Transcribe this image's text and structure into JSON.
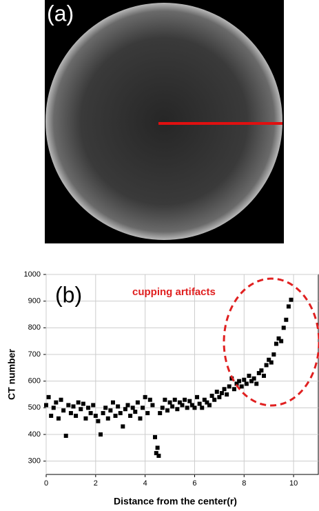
{
  "panel_a": {
    "label": "(a)"
  },
  "chart_data": {
    "type": "scatter",
    "panel_label": "(b)",
    "annotation": "cupping artifacts",
    "x_label": "Distance from the center(r)",
    "y_label": "CT number",
    "xlim": [
      0,
      11
    ],
    "xticks": [
      0,
      2,
      4,
      6,
      8,
      10
    ],
    "ylim": [
      250,
      1000
    ],
    "yticks": [
      300,
      400,
      500,
      600,
      700,
      800,
      900,
      1000
    ],
    "grid": true,
    "color": "#000000",
    "x": [
      0.0,
      0.1,
      0.2,
      0.3,
      0.4,
      0.5,
      0.6,
      0.7,
      0.8,
      0.9,
      1.0,
      1.1,
      1.2,
      1.3,
      1.4,
      1.5,
      1.6,
      1.7,
      1.8,
      1.9,
      2.0,
      2.1,
      2.2,
      2.3,
      2.4,
      2.5,
      2.6,
      2.7,
      2.8,
      2.9,
      3.0,
      3.1,
      3.2,
      3.3,
      3.4,
      3.5,
      3.6,
      3.7,
      3.8,
      3.9,
      4.0,
      4.1,
      4.2,
      4.3,
      4.4,
      4.45,
      4.5,
      4.55,
      4.6,
      4.7,
      4.8,
      4.9,
      5.0,
      5.1,
      5.2,
      5.3,
      5.4,
      5.5,
      5.6,
      5.7,
      5.8,
      5.9,
      6.0,
      6.1,
      6.2,
      6.3,
      6.4,
      6.5,
      6.6,
      6.7,
      6.8,
      6.9,
      7.0,
      7.1,
      7.2,
      7.3,
      7.4,
      7.5,
      7.6,
      7.7,
      7.8,
      7.9,
      8.0,
      8.1,
      8.2,
      8.3,
      8.4,
      8.5,
      8.6,
      8.7,
      8.8,
      8.9,
      9.0,
      9.1,
      9.2,
      9.3,
      9.4,
      9.5,
      9.6,
      9.7,
      9.8,
      9.9
    ],
    "values": [
      510,
      540,
      470,
      500,
      520,
      460,
      530,
      490,
      395,
      510,
      480,
      505,
      470,
      520,
      495,
      515,
      460,
      500,
      480,
      510,
      470,
      450,
      400,
      480,
      500,
      460,
      490,
      520,
      470,
      505,
      480,
      430,
      495,
      510,
      470,
      500,
      485,
      520,
      460,
      500,
      540,
      480,
      530,
      510,
      390,
      330,
      350,
      320,
      480,
      500,
      530,
      490,
      520,
      505,
      530,
      495,
      520,
      510,
      530,
      500,
      525,
      510,
      500,
      540,
      515,
      500,
      530,
      520,
      510,
      545,
      530,
      560,
      540,
      555,
      570,
      550,
      580,
      610,
      570,
      590,
      600,
      580,
      605,
      590,
      620,
      600,
      610,
      590,
      630,
      640,
      620,
      660,
      680,
      670,
      700,
      740,
      760,
      750,
      800,
      830,
      880,
      905
    ]
  }
}
